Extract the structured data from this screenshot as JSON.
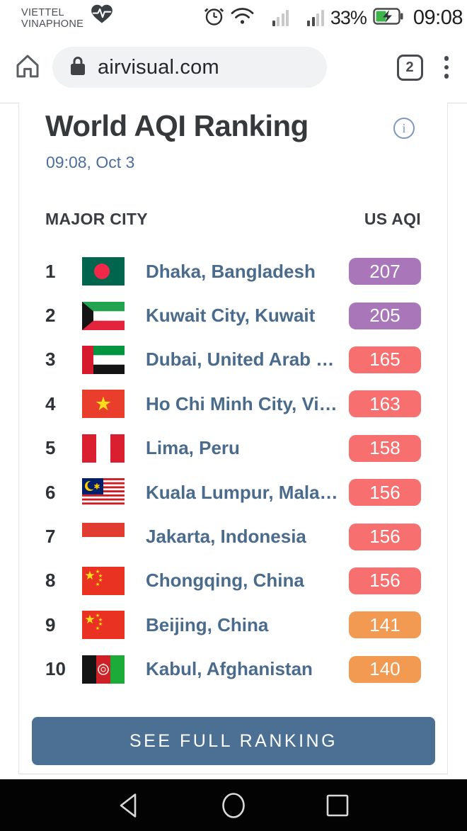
{
  "status_bar": {
    "carrier_line1": "VIETTEL",
    "carrier_line2": "VINAPHONE",
    "battery_percent": "33%",
    "time": "09:08"
  },
  "browser": {
    "url": "airvisual.com",
    "tab_count": "2"
  },
  "page": {
    "title": "World AQI Ranking",
    "info_glyph": "i",
    "timestamp": "09:08, Oct 3",
    "table": {
      "col_city": "MAJOR CITY",
      "col_aqi": "US AQI",
      "rows": [
        {
          "rank": "1",
          "flag": "bangladesh",
          "city": "Dhaka, Bangladesh",
          "aqi": "207",
          "level": "very-unhealthy",
          "color": "#a976ba"
        },
        {
          "rank": "2",
          "flag": "kuwait",
          "city": "Kuwait City, Kuwait",
          "aqi": "205",
          "level": "very-unhealthy",
          "color": "#a976ba"
        },
        {
          "rank": "3",
          "flag": "uae",
          "city": "Dubai, United Arab …",
          "aqi": "165",
          "level": "unhealthy",
          "color": "#f76f6f"
        },
        {
          "rank": "4",
          "flag": "vietnam",
          "city": "Ho Chi Minh City, Vi…",
          "aqi": "163",
          "level": "unhealthy",
          "color": "#f76f6f"
        },
        {
          "rank": "5",
          "flag": "peru",
          "city": "Lima, Peru",
          "aqi": "158",
          "level": "unhealthy",
          "color": "#f76f6f"
        },
        {
          "rank": "6",
          "flag": "malaysia",
          "city": "Kuala Lumpur, Mala…",
          "aqi": "156",
          "level": "unhealthy",
          "color": "#f76f6f"
        },
        {
          "rank": "7",
          "flag": "indonesia",
          "city": "Jakarta, Indonesia",
          "aqi": "156",
          "level": "unhealthy",
          "color": "#f76f6f"
        },
        {
          "rank": "8",
          "flag": "china",
          "city": "Chongqing, China",
          "aqi": "156",
          "level": "unhealthy",
          "color": "#f76f6f"
        },
        {
          "rank": "9",
          "flag": "china",
          "city": "Beijing, China",
          "aqi": "141",
          "level": "unhealthy-sensitive",
          "color": "#f29a52"
        },
        {
          "rank": "10",
          "flag": "afghanistan",
          "city": "Kabul, Afghanistan",
          "aqi": "140",
          "level": "unhealthy-sensitive",
          "color": "#f29a52"
        }
      ]
    },
    "button_label": "SEE FULL RANKING",
    "button_color": "#4c7094",
    "accent_link_color": "#4b6b8c"
  }
}
